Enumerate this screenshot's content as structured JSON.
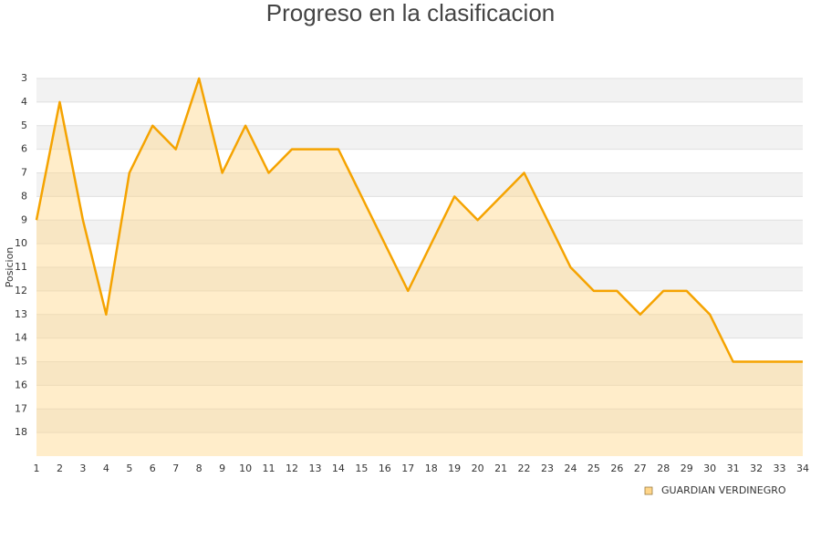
{
  "chart_data": {
    "type": "line",
    "title": "Progreso en la clasificacion",
    "y_label": "Posicion",
    "x": [
      1,
      2,
      3,
      4,
      5,
      6,
      7,
      8,
      9,
      10,
      11,
      12,
      13,
      14,
      15,
      16,
      17,
      18,
      19,
      20,
      21,
      22,
      23,
      24,
      25,
      26,
      27,
      28,
      29,
      30,
      31,
      32,
      33,
      34
    ],
    "series": [
      {
        "name": "GUARDIAN VERDINEGRO",
        "color": "#f5a300",
        "fill": "#ffd68a",
        "values": [
          9,
          4,
          9,
          13,
          7,
          5,
          6,
          3,
          7,
          5,
          7,
          6,
          6,
          6,
          8,
          10,
          12,
          10,
          8,
          9,
          8,
          7,
          9,
          11,
          12,
          12,
          13,
          12,
          12,
          13,
          15,
          15,
          15,
          15
        ]
      }
    ],
    "xlim": [
      1,
      34
    ],
    "xticks": [
      1,
      2,
      3,
      4,
      5,
      6,
      7,
      8,
      9,
      10,
      11,
      12,
      13,
      14,
      15,
      16,
      17,
      18,
      19,
      20,
      21,
      22,
      23,
      24,
      25,
      26,
      27,
      28,
      29,
      30,
      31,
      32,
      33,
      34
    ],
    "ylim": [
      3,
      19
    ],
    "y_inverted": true,
    "yticks": [
      3,
      4,
      5,
      6,
      7,
      8,
      9,
      10,
      11,
      12,
      13,
      14,
      15,
      16,
      17,
      18
    ],
    "grid": true,
    "area": true,
    "legend": "bottom-right"
  }
}
